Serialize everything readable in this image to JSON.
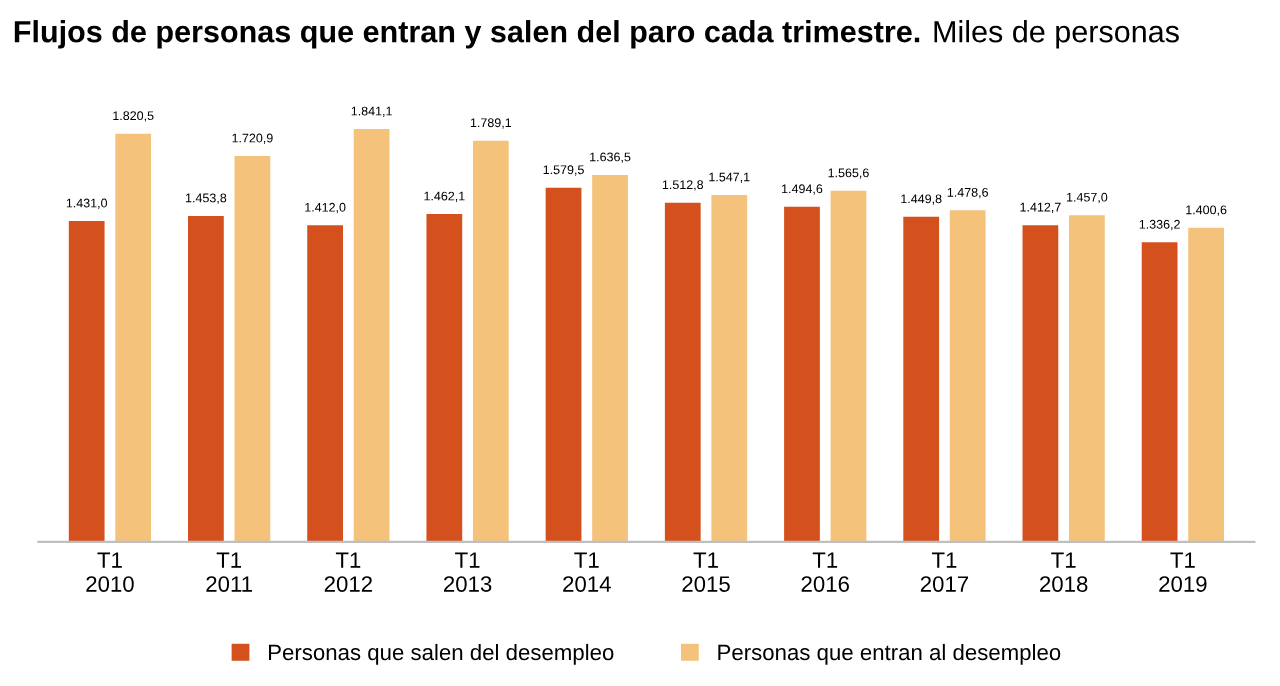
{
  "chart_data": {
    "type": "bar",
    "title": "Flujos de personas que entran y salen del paro cada trimestre.",
    "subtitle": "Miles de personas",
    "categories": [
      "T1\n2010",
      "T1\n2011",
      "T1\n2012",
      "T1\n2013",
      "T1\n2014",
      "T1\n2015",
      "T1\n2016",
      "T1\n2017",
      "T1\n2018",
      "T1\n2019"
    ],
    "series": [
      {
        "name": "Personas que salen del desempleo",
        "color": "#d4501c",
        "values": [
          1431.0,
          1453.8,
          1412.0,
          1462.1,
          1579.5,
          1512.8,
          1494.6,
          1449.8,
          1412.7,
          1336.2
        ],
        "value_labels": [
          "1.431,0",
          "1.453,8",
          "1.412,0",
          "1.462,1",
          "1.579,5",
          "1.512,8",
          "1.494,6",
          "1.449,8",
          "1.412,7",
          "1.336,2"
        ]
      },
      {
        "name": "Personas que entran al desempleo",
        "color": "#f5c27c",
        "values": [
          1820.5,
          1720.9,
          1841.1,
          1789.1,
          1636.5,
          1547.1,
          1565.6,
          1478.6,
          1457.0,
          1400.6
        ],
        "value_labels": [
          "1.820,5",
          "1.720,9",
          "1.841,1",
          "1.789,1",
          "1.636,5",
          "1.547,1",
          "1.565,6",
          "1.478,6",
          "1.457,0",
          "1.400,6"
        ]
      }
    ],
    "legend": "bottom"
  }
}
